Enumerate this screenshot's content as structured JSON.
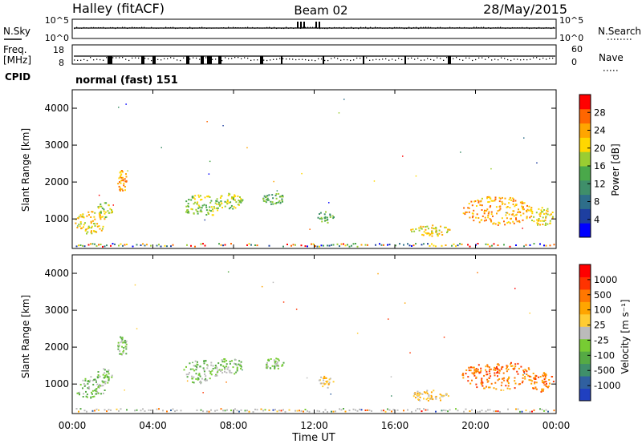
{
  "header": {
    "site": "Halley (fitACF)",
    "beam": "Beam 02",
    "date": "28/May/2015"
  },
  "noise_panel": {
    "left_label": "N.Sky",
    "right_label": "N.Search",
    "left_ticks": [
      "10^5",
      "10^0"
    ],
    "right_ticks": [
      "10^5",
      "10^0"
    ]
  },
  "freq_panel": {
    "left_label_1": "Freq.",
    "left_label_2": "[MHz]",
    "right_label": "Nave",
    "left_ticks": [
      "18",
      "8"
    ],
    "right_ticks": [
      "60",
      "0"
    ]
  },
  "cpid": {
    "label": "CPID",
    "value": "normal (fast) 151"
  },
  "chart_data": [
    {
      "type": "heatmap",
      "panel": "power",
      "ylabel": "Slant Range [km]",
      "y_ticks": [
        "1000",
        "2000",
        "3000",
        "4000"
      ],
      "ylim": [
        200,
        4500
      ],
      "colorbar_label": "Power [dB]",
      "colorbar_ticks": [
        "28",
        "24",
        "20",
        "16",
        "12",
        "8",
        "4"
      ],
      "colorbar_colors": [
        "#0000ff",
        "#1e3fa0",
        "#2e6e8a",
        "#3f8f6a",
        "#4aa84a",
        "#9acd32",
        "#ffd700",
        "#ffa500",
        "#ff6600",
        "#ff0000"
      ]
    },
    {
      "type": "heatmap",
      "panel": "velocity",
      "ylabel": "Slant Range [km]",
      "y_ticks": [
        "1000",
        "2000",
        "3000",
        "4000"
      ],
      "ylim": [
        200,
        4500
      ],
      "colorbar_label": "Velocity [m s⁻¹]",
      "colorbar_ticks": [
        "1000",
        "500",
        "100",
        "25",
        "-25",
        "-100",
        "-500",
        "-1000"
      ],
      "colorbar_colors": [
        "#2040c0",
        "#3060a0",
        "#3f8f6a",
        "#55aa44",
        "#77cc33",
        "#bbbbbb",
        "#ffcc33",
        "#ffa500",
        "#ff7700",
        "#ff3300",
        "#ff0000"
      ]
    }
  ],
  "x_axis": {
    "ticks": [
      "00:00",
      "04:00",
      "08:00",
      "12:00",
      "16:00",
      "20:00",
      "00:00"
    ],
    "label": "Time UT"
  }
}
